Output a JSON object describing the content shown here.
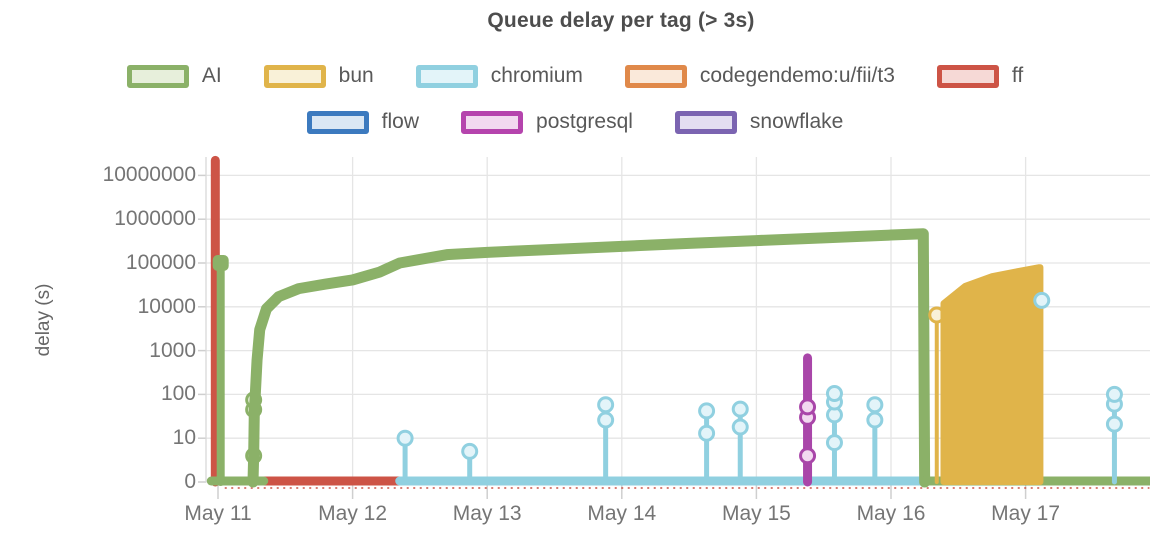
{
  "legend": {
    "rows": [
      [
        {
          "label": "AI",
          "color": "#8bb168",
          "fill": "#e7efdb"
        },
        {
          "label": "bun",
          "color": "#e0b44a",
          "fill": "#f9f1d8"
        },
        {
          "label": "chromium",
          "color": "#90d0e0",
          "fill": "#e3f4f9"
        },
        {
          "label": "codegendemo:u/fii/t3",
          "color": "#e0894a",
          "fill": "#fae9da"
        },
        {
          "label": "ff",
          "color": "#cd5446",
          "fill": "#f6d9d6"
        }
      ],
      [
        {
          "label": "flow",
          "color": "#3c7abf",
          "fill": "#dae7f4"
        },
        {
          "label": "postgresql",
          "color": "#b544ad",
          "fill": "#f2d9f0"
        },
        {
          "label": "snowflake",
          "color": "#7b64b1",
          "fill": "#e3def1"
        }
      ]
    ]
  },
  "chart_data": {
    "type": "line",
    "title": "Queue delay per tag (> 3s)",
    "xlabel": "",
    "ylabel": "delay (s)",
    "y_scale": "symlog (linear below 10)",
    "grid": true,
    "legend_position": "top-center",
    "x_axis": {
      "unit": "date",
      "range_days": [
        10.9,
        17.92
      ],
      "ticks": [
        {
          "day": 11,
          "label": "May 11"
        },
        {
          "day": 12,
          "label": "May 12"
        },
        {
          "day": 13,
          "label": "May 13"
        },
        {
          "day": 14,
          "label": "May 14"
        },
        {
          "day": 15,
          "label": "May 15"
        },
        {
          "day": 16,
          "label": "May 16"
        },
        {
          "day": 17,
          "label": "May 17"
        }
      ]
    },
    "y_axis": {
      "label": "delay (s)",
      "ticks": [
        {
          "value": 0,
          "label": "0"
        },
        {
          "value": 10,
          "label": "10"
        },
        {
          "value": 100,
          "label": "100"
        },
        {
          "value": 1000,
          "label": "1000"
        },
        {
          "value": 10000,
          "label": "10000"
        },
        {
          "value": 100000,
          "label": "100000"
        },
        {
          "value": 1000000,
          "label": "1000000"
        },
        {
          "value": 10000000,
          "label": "10000000"
        }
      ],
      "grid_color": "#e5e5e5"
    },
    "series": [
      {
        "name": "ff",
        "color": "#cd5446",
        "light": "#f6d9d6",
        "elements": [
          {
            "kind": "dotline",
            "day0": 11.05,
            "day1": 17.92,
            "z": 0
          },
          {
            "kind": "spike",
            "day": 10.98,
            "peak": 22000000,
            "width": 9,
            "z": 1
          },
          {
            "kind": "baseline",
            "day0": 11.0,
            "day1": 12.37,
            "width": 9,
            "z": 1
          }
        ]
      },
      {
        "name": "chromium",
        "color": "#90d0e0",
        "light": "#e3f4f9",
        "elements": [
          {
            "kind": "baseline",
            "day0": 12.35,
            "day1": 16.25,
            "width": 9,
            "z": 2
          },
          {
            "kind": "spike",
            "day": 12.39,
            "peak": 10,
            "markers": [
              10
            ],
            "width": 5,
            "z": 4
          },
          {
            "kind": "spike",
            "day": 12.87,
            "peak": 7,
            "markers": [
              7
            ],
            "width": 5,
            "z": 4
          },
          {
            "kind": "spike",
            "day": 13.88,
            "peak": 58,
            "markers": [
              26,
              58
            ],
            "width": 5,
            "z": 4
          },
          {
            "kind": "spike",
            "day": 14.63,
            "peak": 42,
            "markers": [
              13,
              42
            ],
            "width": 5,
            "z": 4
          },
          {
            "kind": "spike",
            "day": 14.88,
            "peak": 46,
            "markers": [
              18,
              46
            ],
            "width": 5,
            "z": 4
          },
          {
            "kind": "spike",
            "day": 15.58,
            "peak": 110,
            "markers": [
              9,
              34,
              67,
              105
            ],
            "width": 5,
            "z": 4
          },
          {
            "kind": "spike",
            "day": 15.88,
            "peak": 58,
            "markers": [
              26,
              58
            ],
            "width": 5,
            "z": 4
          },
          {
            "kind": "markers",
            "day": 17.12,
            "values": [
              14000
            ],
            "z": 6
          },
          {
            "kind": "spike",
            "day": 17.66,
            "peak": 105,
            "markers": [
              21,
              60,
              100
            ],
            "width": 5,
            "z": 6
          }
        ]
      },
      {
        "name": "AI",
        "color": "#8bb168",
        "light": "#e7efdb",
        "elements": [
          {
            "kind": "baseline",
            "day0": 10.95,
            "day1": 11.34,
            "width": 9,
            "z": 3
          },
          {
            "kind": "spike",
            "day": 11.02,
            "peak": 100000,
            "width": 8,
            "topdot": true,
            "z": 3
          },
          {
            "kind": "markers",
            "day": 11.265,
            "values": [
              6,
              45,
              75
            ],
            "z": 3
          },
          {
            "kind": "curve",
            "width": 11,
            "z": 3,
            "points": [
              [
                11.26,
                0
              ],
              [
                11.265,
                6
              ],
              [
                11.27,
                45
              ],
              [
                11.275,
                75
              ],
              [
                11.29,
                600
              ],
              [
                11.31,
                3000
              ],
              [
                11.36,
                9000
              ],
              [
                11.45,
                17000
              ],
              [
                11.6,
                26000
              ],
              [
                11.8,
                33000
              ],
              [
                12.0,
                41000
              ],
              [
                12.2,
                62000
              ],
              [
                12.35,
                100000
              ],
              [
                12.7,
                155000
              ],
              [
                13.0,
                175000
              ],
              [
                13.5,
                205000
              ],
              [
                14.0,
                240000
              ],
              [
                14.5,
                280000
              ],
              [
                15.0,
                325000
              ],
              [
                15.5,
                375000
              ],
              [
                16.0,
                435000
              ],
              [
                16.24,
                465000
              ],
              [
                16.25,
                0
              ]
            ]
          },
          {
            "kind": "baseline",
            "day0": 16.25,
            "day1": 17.92,
            "width": 9,
            "z": 3
          }
        ]
      },
      {
        "name": "postgresql",
        "color": "#a946a9",
        "light": "#f2d9f0",
        "elements": [
          {
            "kind": "spike",
            "day": 15.38,
            "peak": 680,
            "markers": [
              6,
              30,
              52
            ],
            "width": 9,
            "z": 4
          }
        ]
      },
      {
        "name": "bun",
        "color": "#e0b44a",
        "light": "#f9f1d8",
        "elements": [
          {
            "kind": "spike",
            "day": 16.34,
            "peak": 6500,
            "markers": [
              6500
            ],
            "width": 4,
            "z": 5
          },
          {
            "kind": "area",
            "z": 5,
            "points": [
              [
                16.39,
                12000
              ],
              [
                16.55,
                30000
              ],
              [
                16.75,
                50000
              ],
              [
                16.95,
                66000
              ],
              [
                17.08,
                78000
              ],
              [
                17.1,
                80000
              ],
              [
                17.11,
                80000
              ]
            ]
          }
        ]
      },
      {
        "name": "flow",
        "color": "#3c7abf",
        "light": "#dae7f4",
        "elements": []
      },
      {
        "name": "snowflake",
        "color": "#7b64b1",
        "light": "#e3def1",
        "elements": []
      },
      {
        "name": "codegendemo:u/fii/t3",
        "color": "#e0894a",
        "light": "#fae9da",
        "elements": []
      }
    ]
  }
}
